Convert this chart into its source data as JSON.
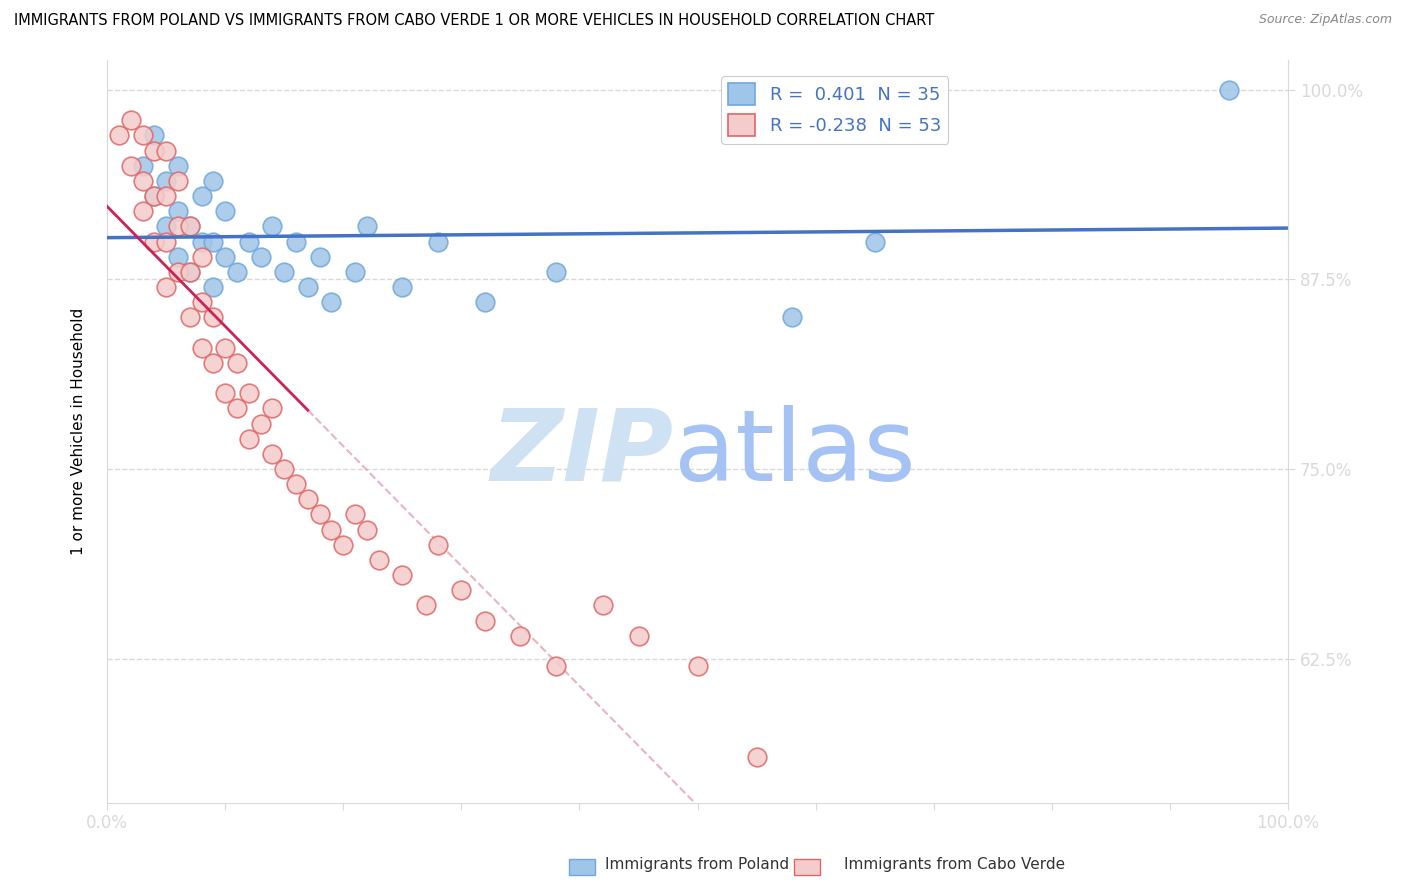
{
  "title": "IMMIGRANTS FROM POLAND VS IMMIGRANTS FROM CABO VERDE 1 OR MORE VEHICLES IN HOUSEHOLD CORRELATION CHART",
  "source": "Source: ZipAtlas.com",
  "ylabel": "1 or more Vehicles in Household",
  "ytick_labels": [
    "100.0%",
    "87.5%",
    "75.0%",
    "62.5%"
  ],
  "ytick_values": [
    1.0,
    0.875,
    0.75,
    0.625
  ],
  "xtick_labels": [
    "0.0%",
    "",
    "",
    "",
    "",
    "",
    "",
    "",
    "",
    "",
    "100.0%"
  ],
  "legend_poland_R": "0.401",
  "legend_poland_N": "35",
  "legend_caboverde_R": "-0.238",
  "legend_caboverde_N": "53",
  "color_poland_fill": "#9fc5e8",
  "color_poland_edge": "#6fa8dc",
  "color_caboverde_fill": "#f4cccc",
  "color_caboverde_edge": "#e06666",
  "color_poland_line": "#4472c4",
  "color_caboverde_line": "#cc2255",
  "color_dashed_line": "#e8a0b0",
  "color_grid": "#d9d9d9",
  "watermark_zip_color": "#cfe2f3",
  "watermark_atlas_color": "#a4c2f4",
  "poland_x": [
    0.003,
    0.004,
    0.004,
    0.005,
    0.005,
    0.006,
    0.006,
    0.006,
    0.007,
    0.007,
    0.008,
    0.008,
    0.009,
    0.009,
    0.009,
    0.01,
    0.01,
    0.011,
    0.012,
    0.013,
    0.014,
    0.015,
    0.016,
    0.017,
    0.018,
    0.019,
    0.021,
    0.022,
    0.025,
    0.028,
    0.032,
    0.038,
    0.058,
    0.065,
    0.095
  ],
  "poland_y": [
    0.95,
    0.93,
    0.97,
    0.91,
    0.94,
    0.89,
    0.92,
    0.95,
    0.88,
    0.91,
    0.9,
    0.93,
    0.87,
    0.9,
    0.94,
    0.89,
    0.92,
    0.88,
    0.9,
    0.89,
    0.91,
    0.88,
    0.9,
    0.87,
    0.89,
    0.86,
    0.88,
    0.91,
    0.87,
    0.9,
    0.86,
    0.88,
    0.85,
    0.9,
    1.0
  ],
  "caboverde_x": [
    0.001,
    0.002,
    0.002,
    0.003,
    0.003,
    0.003,
    0.004,
    0.004,
    0.004,
    0.005,
    0.005,
    0.005,
    0.005,
    0.006,
    0.006,
    0.006,
    0.007,
    0.007,
    0.007,
    0.008,
    0.008,
    0.008,
    0.009,
    0.009,
    0.01,
    0.01,
    0.011,
    0.011,
    0.012,
    0.012,
    0.013,
    0.014,
    0.014,
    0.015,
    0.016,
    0.017,
    0.018,
    0.019,
    0.02,
    0.021,
    0.022,
    0.023,
    0.025,
    0.027,
    0.028,
    0.03,
    0.032,
    0.035,
    0.038,
    0.042,
    0.045,
    0.05,
    0.055
  ],
  "caboverde_y": [
    0.97,
    0.95,
    0.98,
    0.92,
    0.94,
    0.97,
    0.9,
    0.93,
    0.96,
    0.87,
    0.9,
    0.93,
    0.96,
    0.88,
    0.91,
    0.94,
    0.85,
    0.88,
    0.91,
    0.83,
    0.86,
    0.89,
    0.82,
    0.85,
    0.8,
    0.83,
    0.79,
    0.82,
    0.77,
    0.8,
    0.78,
    0.76,
    0.79,
    0.75,
    0.74,
    0.73,
    0.72,
    0.71,
    0.7,
    0.72,
    0.71,
    0.69,
    0.68,
    0.66,
    0.7,
    0.67,
    0.65,
    0.64,
    0.62,
    0.66,
    0.64,
    0.62,
    0.56
  ],
  "xmin": 0.0,
  "xmax": 0.1,
  "ymin": 0.53,
  "ymax": 1.02
}
